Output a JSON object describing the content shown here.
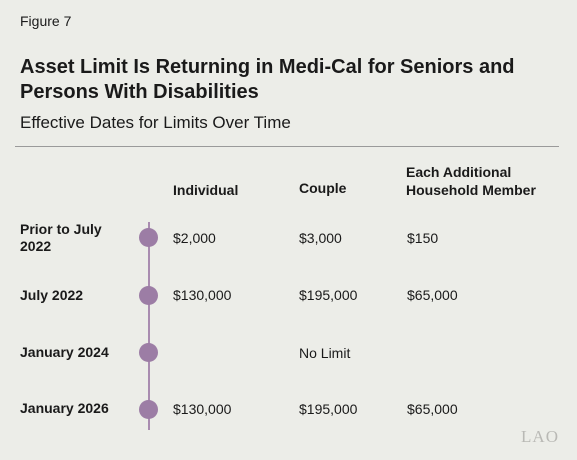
{
  "figure_label": "Figure 7",
  "title": "Asset Limit Is Returning in Medi-Cal for Seniors and Persons With Disabilities",
  "subtitle": "Effective Dates for Limits Over Time",
  "columns": {
    "individual": "Individual",
    "couple": "Couple",
    "additional": "Each Additional Household Member"
  },
  "rows": [
    {
      "label": "Prior to July 2022",
      "individual": "$2,000",
      "couple": "$3,000",
      "additional": "$150"
    },
    {
      "label": "July 2022",
      "individual": "$130,000",
      "couple": "$195,000",
      "additional": "$65,000"
    },
    {
      "label": "January 2024",
      "individual": "",
      "couple": "No Limit",
      "additional": ""
    },
    {
      "label": "January 2026",
      "individual": "$130,000",
      "couple": "$195,000",
      "additional": "$65,000"
    }
  ],
  "logo_text": "LAO",
  "colors": {
    "timeline": "#9c7da5",
    "background": "#ecede8"
  }
}
